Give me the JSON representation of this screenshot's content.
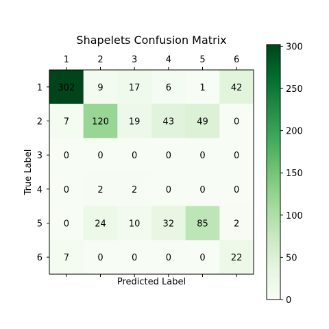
{
  "chart_data": {
    "type": "heatmap",
    "title": "Shapelets Confusion Matrix",
    "xlabel": "Predicted Label",
    "ylabel": "True Label",
    "x_categories": [
      "1",
      "2",
      "3",
      "4",
      "5",
      "6"
    ],
    "y_categories": [
      "1",
      "2",
      "3",
      "4",
      "5",
      "6"
    ],
    "values": [
      [
        302,
        9,
        17,
        6,
        1,
        42
      ],
      [
        7,
        120,
        19,
        43,
        49,
        0
      ],
      [
        0,
        0,
        0,
        0,
        0,
        0
      ],
      [
        0,
        2,
        2,
        0,
        0,
        0
      ],
      [
        0,
        24,
        10,
        32,
        85,
        2
      ],
      [
        7,
        0,
        0,
        0,
        0,
        22
      ]
    ],
    "colormap": "Greens",
    "colorbar": {
      "min": 0,
      "max": 302,
      "ticks": [
        0,
        50,
        100,
        150,
        200,
        250,
        300
      ]
    },
    "x_tick_position": "top",
    "grid": false
  }
}
